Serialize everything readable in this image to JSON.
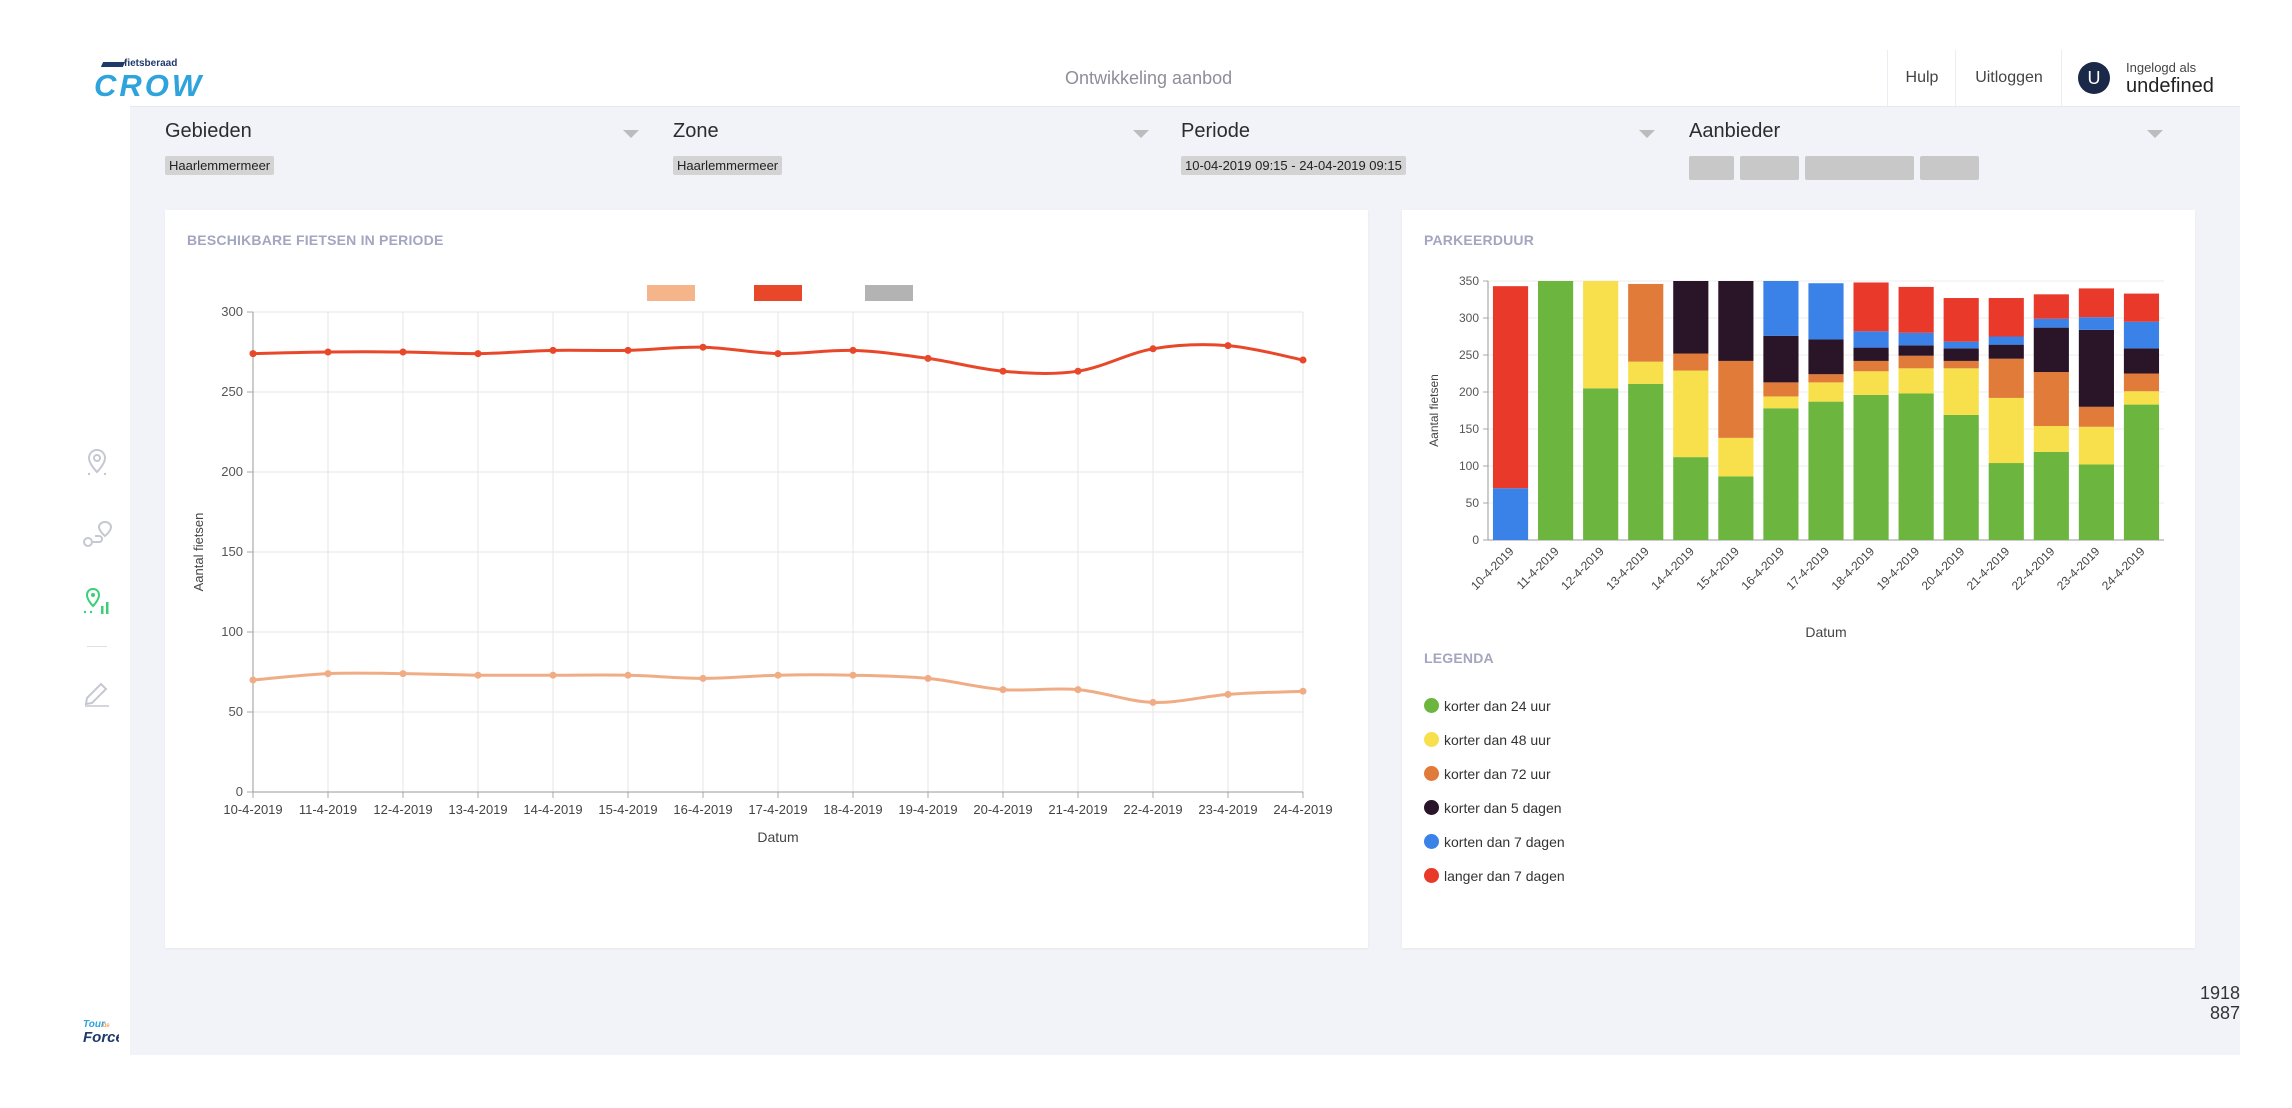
{
  "header": {
    "logo_small": "fietsberaad",
    "logo_big": "CROW",
    "title": "Ontwikkeling aanbod",
    "help_label": "Hulp",
    "logout_label": "Uitloggen",
    "user_initial": "U",
    "user_caption": "Ingelogd als",
    "user_name": "undefined"
  },
  "sidebar": {
    "items": [
      {
        "icon": "map-pin-icon",
        "active": false
      },
      {
        "icon": "route-icon",
        "active": false
      },
      {
        "icon": "map-stats-icon",
        "active": true
      },
      {
        "icon": "edit-icon",
        "active": false
      }
    ],
    "footer_logo": "tour-de-force-logo"
  },
  "filters": {
    "gebieden": {
      "label": "Gebieden",
      "value": "Haarlemmermeer"
    },
    "zone": {
      "label": "Zone",
      "value": "Haarlemmermeer"
    },
    "periode": {
      "label": "Periode",
      "value": "10-04-2019 09:15 - 24-04-2019 09:15"
    },
    "aanbieder": {
      "label": "Aanbieder",
      "chips": 4
    }
  },
  "left_panel": {
    "title": "BESCHIKBARE FIETSEN IN PERIODE"
  },
  "right_panel": {
    "title": "PARKEERDUUR",
    "legend_title": "LEGENDA",
    "legend": [
      {
        "label": "korter dan 24 uur",
        "color": "#6cb53e"
      },
      {
        "label": "korter dan 48 uur",
        "color": "#f7e04b"
      },
      {
        "label": "korter dan 72 uur",
        "color": "#e07b39"
      },
      {
        "label": "korter dan 5 dagen",
        "color": "#2a1428"
      },
      {
        "label": "korten dan 7 dagen",
        "color": "#3b82e8"
      },
      {
        "label": "langer dan 7 dagen",
        "color": "#e8392a"
      }
    ]
  },
  "viewport": {
    "width_text": "1918",
    "height_text": "887"
  },
  "chart_data": [
    {
      "type": "line",
      "title": "",
      "xlabel": "Datum",
      "ylabel": "Aantal fietsen",
      "ylim": [
        0,
        300
      ],
      "yticks": [
        0,
        50,
        100,
        150,
        200,
        250,
        300
      ],
      "grid": true,
      "legend_placement": "top",
      "legend_colors": [
        "#f5b48a",
        "#e8472a",
        "#b3b3b3"
      ],
      "categories": [
        "10-4-2019",
        "11-4-2019",
        "12-4-2019",
        "13-4-2019",
        "14-4-2019",
        "15-4-2019",
        "16-4-2019",
        "17-4-2019",
        "18-4-2019",
        "19-4-2019",
        "20-4-2019",
        "21-4-2019",
        "22-4-2019",
        "23-4-2019",
        "24-4-2019"
      ],
      "series": [
        {
          "color": "#e8472a",
          "values": [
            274,
            275,
            275,
            274,
            276,
            276,
            278,
            274,
            276,
            271,
            263,
            263,
            277,
            279,
            270
          ]
        },
        {
          "color": "#f0ad85",
          "values": [
            70,
            74,
            74,
            73,
            73,
            73,
            71,
            73,
            73,
            71,
            64,
            64,
            56,
            61,
            63
          ]
        }
      ]
    },
    {
      "type": "bar",
      "stacked": true,
      "title": "",
      "xlabel": "Datum",
      "ylabel": "Aantal fietsen",
      "ylim": [
        0,
        350
      ],
      "yticks": [
        0,
        50,
        100,
        150,
        200,
        250,
        300,
        350
      ],
      "categories": [
        "10-4-2019",
        "11-4-2019",
        "12-4-2019",
        "13-4-2019",
        "14-4-2019",
        "15-4-2019",
        "16-4-2019",
        "17-4-2019",
        "18-4-2019",
        "19-4-2019",
        "20-4-2019",
        "21-4-2019",
        "22-4-2019",
        "23-4-2019",
        "24-4-2019"
      ],
      "series": [
        {
          "name": "korter dan 24 uur",
          "color": "#6cb53e",
          "values": [
            0,
            350,
            205,
            211,
            112,
            86,
            178,
            187,
            196,
            198,
            169,
            104,
            119,
            102,
            183
          ]
        },
        {
          "name": "korter dan 48 uur",
          "color": "#f7e04b",
          "values": [
            0,
            0,
            145,
            30,
            117,
            52,
            16,
            26,
            32,
            34,
            63,
            88,
            35,
            51,
            18
          ]
        },
        {
          "name": "korter dan 72 uur",
          "color": "#e07b39",
          "values": [
            0,
            0,
            0,
            105,
            23,
            104,
            19,
            11,
            14,
            17,
            10,
            53,
            73,
            27,
            24
          ]
        },
        {
          "name": "korter dan 5 dagen",
          "color": "#2a1428",
          "values": [
            0,
            0,
            0,
            0,
            98,
            108,
            63,
            47,
            18,
            14,
            17,
            19,
            60,
            104,
            34
          ]
        },
        {
          "name": "korten dan 7 dagen",
          "color": "#3b82e8",
          "values": [
            70,
            0,
            0,
            0,
            0,
            0,
            74,
            76,
            22,
            17,
            9,
            11,
            12,
            17,
            36
          ]
        },
        {
          "name": "langer dan 7 dagen",
          "color": "#e8392a",
          "values": [
            273,
            0,
            0,
            0,
            0,
            0,
            0,
            0,
            66,
            62,
            59,
            52,
            33,
            39,
            38
          ]
        }
      ]
    }
  ]
}
